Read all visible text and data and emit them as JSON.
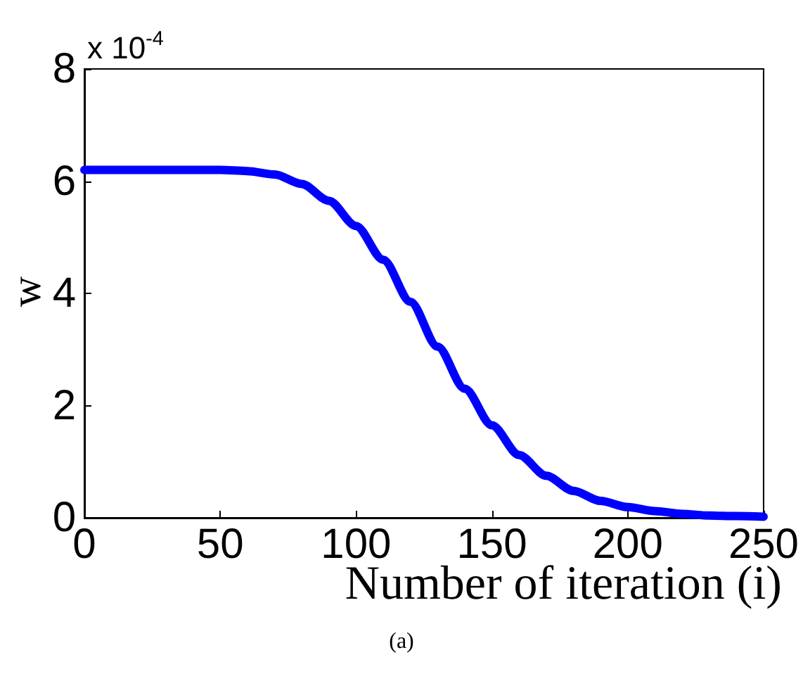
{
  "chart_data": {
    "type": "line",
    "xlabel": "Number of iteration (i)",
    "ylabel": "w",
    "x": [
      0,
      50,
      60,
      70,
      80,
      90,
      100,
      110,
      120,
      130,
      140,
      150,
      160,
      170,
      180,
      190,
      200,
      210,
      220,
      230,
      240,
      250
    ],
    "series": [
      {
        "color": "#0000ff",
        "values": [
          6.2,
          6.2,
          6.18,
          6.12,
          5.95,
          5.65,
          5.2,
          4.6,
          3.85,
          3.05,
          2.3,
          1.65,
          1.12,
          0.75,
          0.48,
          0.3,
          0.19,
          0.12,
          0.07,
          0.04,
          0.03,
          0.02
        ]
      }
    ],
    "xlim": [
      0,
      250
    ],
    "xticks": [
      0,
      50,
      100,
      150,
      200,
      250
    ],
    "ylim": [
      0,
      8
    ],
    "yticks": [
      0,
      2,
      4,
      6,
      8
    ],
    "grid": false,
    "marker": "none",
    "line_style": "solid",
    "annotations": [
      "x 10$^{-4}$",
      "(a)"
    ]
  }
}
